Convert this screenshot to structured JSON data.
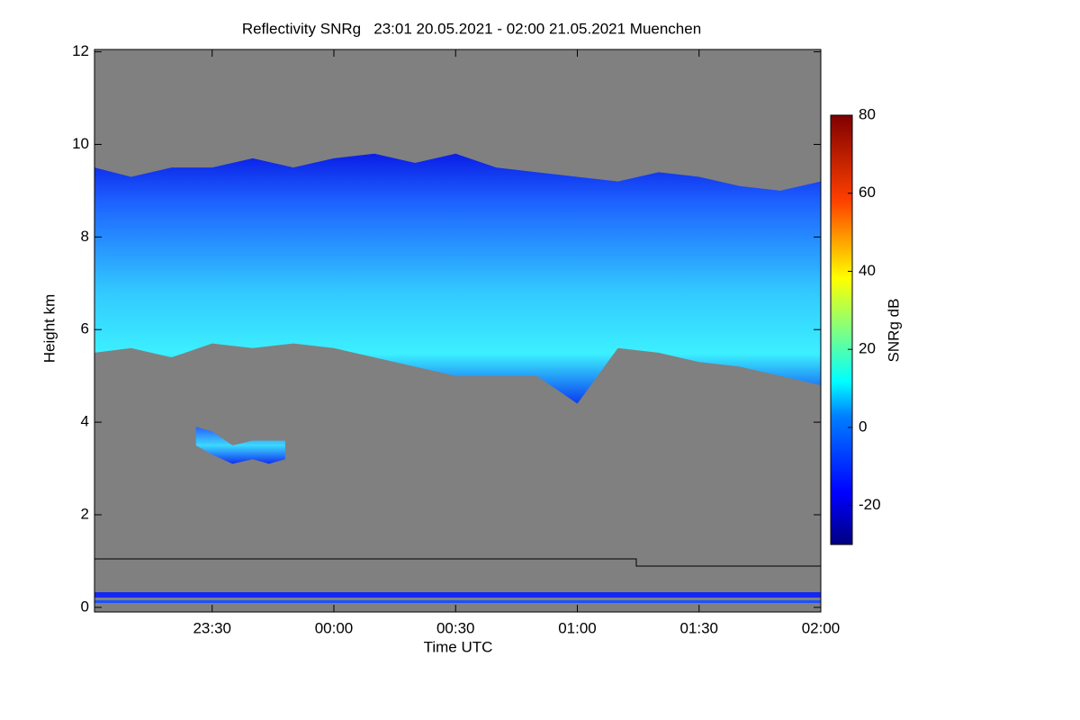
{
  "chart_data": {
    "type": "time-height",
    "title": "Reflectivity SNRg   23:01 20.05.2021 - 02:00 21.05.2021 Muenchen",
    "x_label": "Time UTC",
    "y_label": "Height km",
    "colorbar_label": "SNRg dB",
    "background": "#808080",
    "xlim": [
      1,
      180
    ],
    "xticks": [
      {
        "value": 30,
        "label": "23:30"
      },
      {
        "value": 60,
        "label": "00:00"
      },
      {
        "value": 90,
        "label": "00:30"
      },
      {
        "value": 120,
        "label": "01:00"
      },
      {
        "value": 150,
        "label": "01:30"
      },
      {
        "value": 180,
        "label": "02:00"
      }
    ],
    "ylim": [
      -0.1,
      12.05
    ],
    "yticks": [
      0,
      2,
      4,
      6,
      8,
      10,
      12
    ],
    "clim": [
      -30,
      80
    ],
    "cticks": [
      -20,
      0,
      20,
      40,
      60,
      80
    ],
    "layers": [
      {
        "x": [
          1,
          10,
          20,
          30,
          40,
          50,
          60,
          70,
          80,
          90,
          100,
          110,
          120,
          130,
          140,
          150,
          160,
          170,
          180
        ],
        "top": [
          9.5,
          9.3,
          9.5,
          9.5,
          9.7,
          9.5,
          9.7,
          9.8,
          9.6,
          9.8,
          9.5,
          9.4,
          9.3,
          9.2,
          9.4,
          9.3,
          9.1,
          9.0,
          9.2
        ],
        "base": [
          5.5,
          5.6,
          5.4,
          5.7,
          5.6,
          5.7,
          5.6,
          5.4,
          5.2,
          5.0,
          5.0,
          5.0,
          4.4,
          5.6,
          5.5,
          5.3,
          5.2,
          5.0,
          4.8
        ]
      },
      {
        "x": [
          26,
          30,
          35,
          40,
          44,
          48
        ],
        "top": [
          3.9,
          3.8,
          3.5,
          3.6,
          3.6,
          3.6
        ],
        "base": [
          3.5,
          3.3,
          3.1,
          3.2,
          3.1,
          3.2
        ]
      }
    ]
  }
}
